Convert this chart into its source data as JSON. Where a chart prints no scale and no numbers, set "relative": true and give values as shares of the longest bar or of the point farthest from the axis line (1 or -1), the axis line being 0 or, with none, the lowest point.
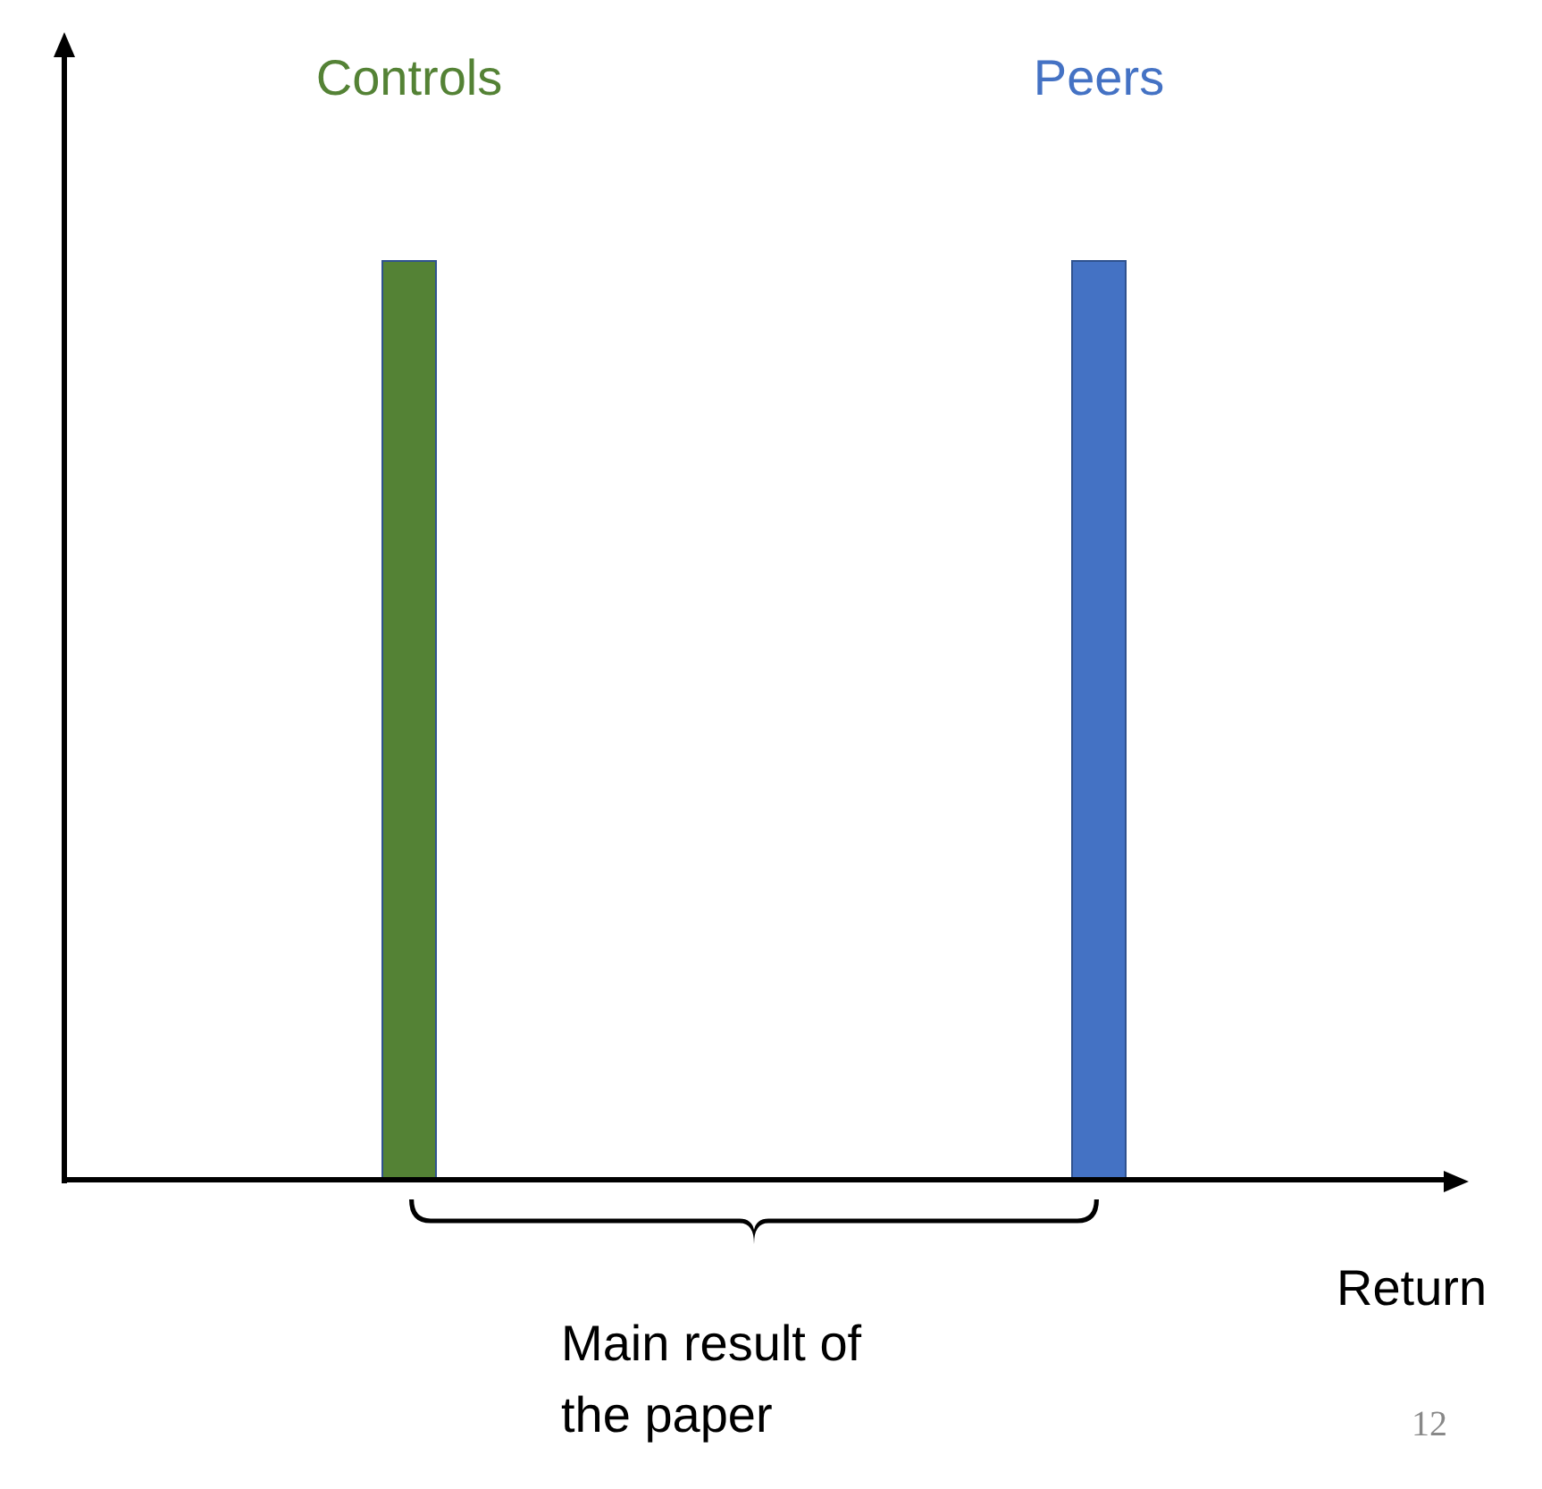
{
  "chart_data": {
    "type": "bar",
    "relative": true,
    "categories": [
      "Controls",
      "Peers"
    ],
    "values": [
      1,
      1
    ],
    "colors": [
      "#548235",
      "#4472c4"
    ],
    "xlabel": "Return",
    "annotations": [
      "Main result of the paper",
      "12"
    ],
    "grid": false,
    "legend": false
  }
}
